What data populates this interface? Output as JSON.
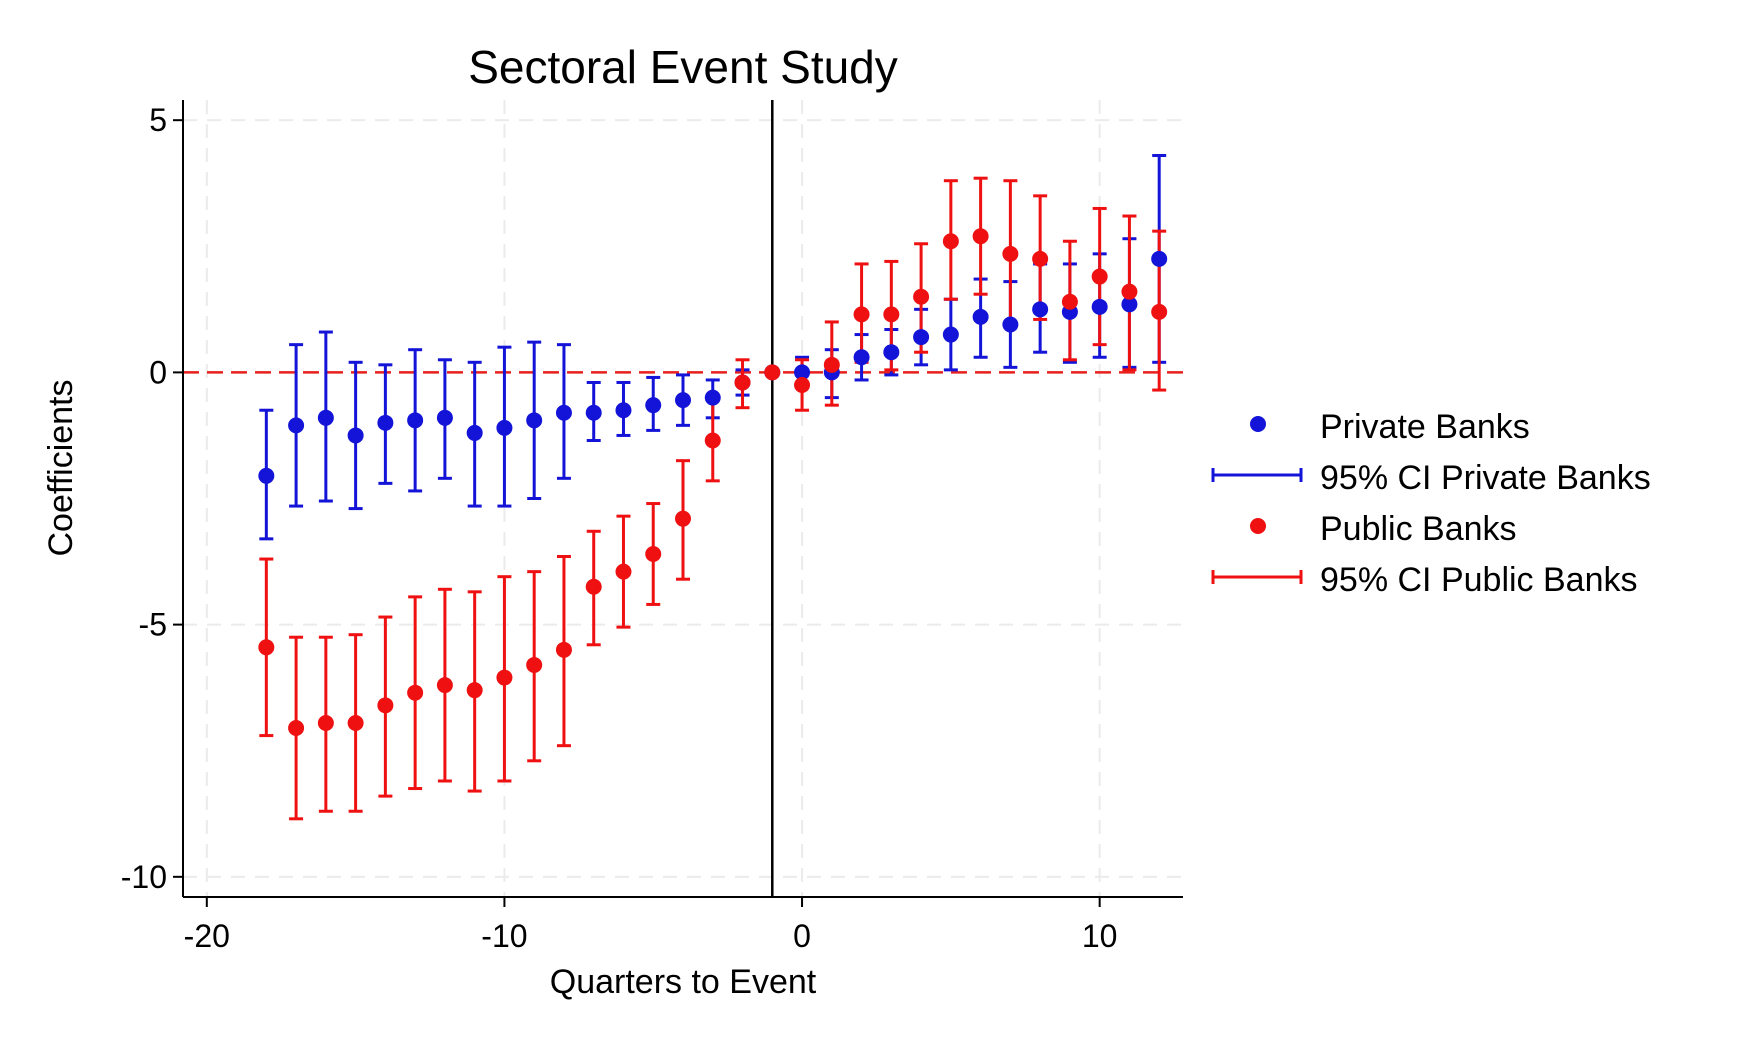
{
  "chart_data": {
    "type": "scatter",
    "title": "Sectoral Event Study",
    "xlabel": "Quarters to Event",
    "ylabel": "Coefficients",
    "xlim": [
      -20.8,
      12.8
    ],
    "ylim": [
      -10.4,
      5.4
    ],
    "xticks": [
      -20,
      -10,
      0,
      10
    ],
    "xtick_labels": [
      "-20",
      "-10",
      "0",
      "10"
    ],
    "yticks": [
      5,
      0,
      -5,
      -10
    ],
    "ytick_labels": [
      "5",
      "0",
      "-5",
      "-10"
    ],
    "grid": true,
    "zero_line": {
      "y": 0,
      "color": "#e8201d",
      "style": "dashed"
    },
    "event_line": {
      "x": -1,
      "color": "#000000",
      "style": "solid"
    },
    "legend": {
      "position": "right",
      "entries": [
        {
          "label": "Private Banks",
          "kind": "marker",
          "color": "#1414d8"
        },
        {
          "label": "95% CI Private Banks",
          "kind": "errorbar",
          "color": "#1414d8"
        },
        {
          "label": "Public Banks",
          "kind": "marker",
          "color": "#ef1111"
        },
        {
          "label": "95% CI Public Banks",
          "kind": "errorbar",
          "color": "#ef1111"
        }
      ]
    },
    "series": [
      {
        "name": "Private Banks",
        "color": "#1414d8",
        "points": [
          {
            "x": -18,
            "y": -2.05,
            "lo": -3.3,
            "hi": -0.75
          },
          {
            "x": -17,
            "y": -1.05,
            "lo": -2.65,
            "hi": 0.55
          },
          {
            "x": -16,
            "y": -0.9,
            "lo": -2.55,
            "hi": 0.8
          },
          {
            "x": -15,
            "y": -1.25,
            "lo": -2.7,
            "hi": 0.2
          },
          {
            "x": -14,
            "y": -1.0,
            "lo": -2.2,
            "hi": 0.15
          },
          {
            "x": -13,
            "y": -0.95,
            "lo": -2.35,
            "hi": 0.45
          },
          {
            "x": -12,
            "y": -0.9,
            "lo": -2.1,
            "hi": 0.25
          },
          {
            "x": -11,
            "y": -1.2,
            "lo": -2.65,
            "hi": 0.2
          },
          {
            "x": -10,
            "y": -1.1,
            "lo": -2.65,
            "hi": 0.5
          },
          {
            "x": -9,
            "y": -0.95,
            "lo": -2.5,
            "hi": 0.6
          },
          {
            "x": -8,
            "y": -0.8,
            "lo": -2.1,
            "hi": 0.55
          },
          {
            "x": -7,
            "y": -0.8,
            "lo": -1.35,
            "hi": -0.2
          },
          {
            "x": -6,
            "y": -0.75,
            "lo": -1.25,
            "hi": -0.2
          },
          {
            "x": -5,
            "y": -0.65,
            "lo": -1.15,
            "hi": -0.1
          },
          {
            "x": -4,
            "y": -0.55,
            "lo": -1.05,
            "hi": -0.05
          },
          {
            "x": -3,
            "y": -0.5,
            "lo": -0.9,
            "hi": -0.15
          },
          {
            "x": -2,
            "y": -0.2,
            "lo": -0.45,
            "hi": 0.05
          },
          {
            "x": -1,
            "y": 0.0,
            "lo": 0.0,
            "hi": 0.0
          },
          {
            "x": 0,
            "y": 0.0,
            "lo": -0.3,
            "hi": 0.3
          },
          {
            "x": 1,
            "y": 0.0,
            "lo": -0.5,
            "hi": 0.45
          },
          {
            "x": 2,
            "y": 0.3,
            "lo": -0.15,
            "hi": 0.75
          },
          {
            "x": 3,
            "y": 0.4,
            "lo": -0.05,
            "hi": 0.85
          },
          {
            "x": 4,
            "y": 0.7,
            "lo": 0.15,
            "hi": 1.25
          },
          {
            "x": 5,
            "y": 0.75,
            "lo": 0.05,
            "hi": 1.45
          },
          {
            "x": 6,
            "y": 1.1,
            "lo": 0.3,
            "hi": 1.85
          },
          {
            "x": 7,
            "y": 0.95,
            "lo": 0.1,
            "hi": 1.8
          },
          {
            "x": 8,
            "y": 1.25,
            "lo": 0.4,
            "hi": 2.15
          },
          {
            "x": 9,
            "y": 1.2,
            "lo": 0.2,
            "hi": 2.15
          },
          {
            "x": 10,
            "y": 1.3,
            "lo": 0.3,
            "hi": 2.35
          },
          {
            "x": 11,
            "y": 1.35,
            "lo": 0.1,
            "hi": 2.65
          },
          {
            "x": 12,
            "y": 2.25,
            "lo": 0.2,
            "hi": 4.3
          }
        ]
      },
      {
        "name": "Public Banks",
        "color": "#ef1111",
        "points": [
          {
            "x": -18,
            "y": -5.45,
            "lo": -7.2,
            "hi": -3.7
          },
          {
            "x": -17,
            "y": -7.05,
            "lo": -8.85,
            "hi": -5.25
          },
          {
            "x": -16,
            "y": -6.95,
            "lo": -8.7,
            "hi": -5.25
          },
          {
            "x": -15,
            "y": -6.95,
            "lo": -8.7,
            "hi": -5.2
          },
          {
            "x": -14,
            "y": -6.6,
            "lo": -8.4,
            "hi": -4.85
          },
          {
            "x": -13,
            "y": -6.35,
            "lo": -8.25,
            "hi": -4.45
          },
          {
            "x": -12,
            "y": -6.2,
            "lo": -8.1,
            "hi": -4.3
          },
          {
            "x": -11,
            "y": -6.3,
            "lo": -8.3,
            "hi": -4.35
          },
          {
            "x": -10,
            "y": -6.05,
            "lo": -8.1,
            "hi": -4.05
          },
          {
            "x": -9,
            "y": -5.8,
            "lo": -7.7,
            "hi": -3.95
          },
          {
            "x": -8,
            "y": -5.5,
            "lo": -7.4,
            "hi": -3.65
          },
          {
            "x": -7,
            "y": -4.25,
            "lo": -5.4,
            "hi": -3.15
          },
          {
            "x": -6,
            "y": -3.95,
            "lo": -5.05,
            "hi": -2.85
          },
          {
            "x": -5,
            "y": -3.6,
            "lo": -4.6,
            "hi": -2.6
          },
          {
            "x": -4,
            "y": -2.9,
            "lo": -4.1,
            "hi": -1.75
          },
          {
            "x": -3,
            "y": -1.35,
            "lo": -2.15,
            "hi": -0.55
          },
          {
            "x": -2,
            "y": -0.2,
            "lo": -0.7,
            "hi": 0.25
          },
          {
            "x": -1,
            "y": 0.0,
            "lo": 0.0,
            "hi": 0.0
          },
          {
            "x": 0,
            "y": -0.25,
            "lo": -0.75,
            "hi": 0.25
          },
          {
            "x": 1,
            "y": 0.15,
            "lo": -0.65,
            "hi": 1.0
          },
          {
            "x": 2,
            "y": 1.15,
            "lo": 0.2,
            "hi": 2.15
          },
          {
            "x": 3,
            "y": 1.15,
            "lo": 0.05,
            "hi": 2.2
          },
          {
            "x": 4,
            "y": 1.5,
            "lo": 0.4,
            "hi": 2.55
          },
          {
            "x": 5,
            "y": 2.6,
            "lo": 1.45,
            "hi": 3.8
          },
          {
            "x": 6,
            "y": 2.7,
            "lo": 1.55,
            "hi": 3.85
          },
          {
            "x": 7,
            "y": 2.35,
            "lo": 0.95,
            "hi": 3.8
          },
          {
            "x": 8,
            "y": 2.25,
            "lo": 1.05,
            "hi": 3.5
          },
          {
            "x": 9,
            "y": 1.4,
            "lo": 0.25,
            "hi": 2.6
          },
          {
            "x": 10,
            "y": 1.9,
            "lo": 0.55,
            "hi": 3.25
          },
          {
            "x": 11,
            "y": 1.6,
            "lo": 0.05,
            "hi": 3.1
          },
          {
            "x": 12,
            "y": 1.2,
            "lo": -0.35,
            "hi": 2.8
          }
        ]
      }
    ]
  }
}
